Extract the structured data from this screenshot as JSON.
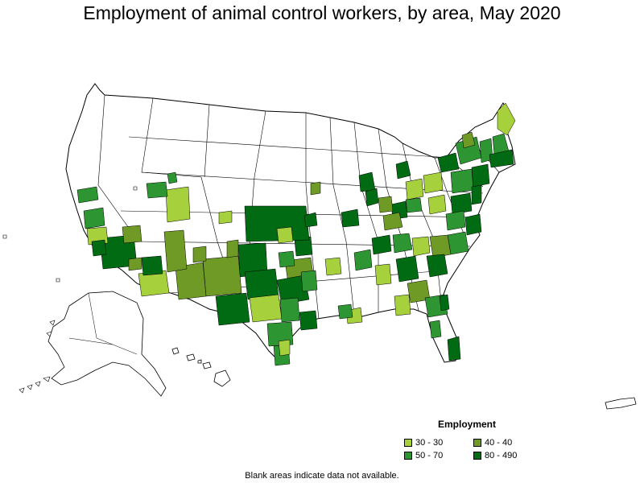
{
  "title": "Employment of animal control workers, by area, May 2020",
  "legend": {
    "title": "Employment",
    "items": [
      {
        "label": "30 - 30",
        "color": "#a6d13c"
      },
      {
        "label": "40 - 40",
        "color": "#6f9a26"
      },
      {
        "label": "50 - 70",
        "color": "#2d9633"
      },
      {
        "label": "80 - 490",
        "color": "#006b13"
      }
    ]
  },
  "footnote": "Blank areas indicate data not available.",
  "colors": {
    "no_data": "#ffffff",
    "boundary": "#000000",
    "range_30_30": "#a6d13c",
    "range_40_40": "#6f9a26",
    "range_50_70": "#2d9633",
    "range_80_490": "#006b13"
  }
}
